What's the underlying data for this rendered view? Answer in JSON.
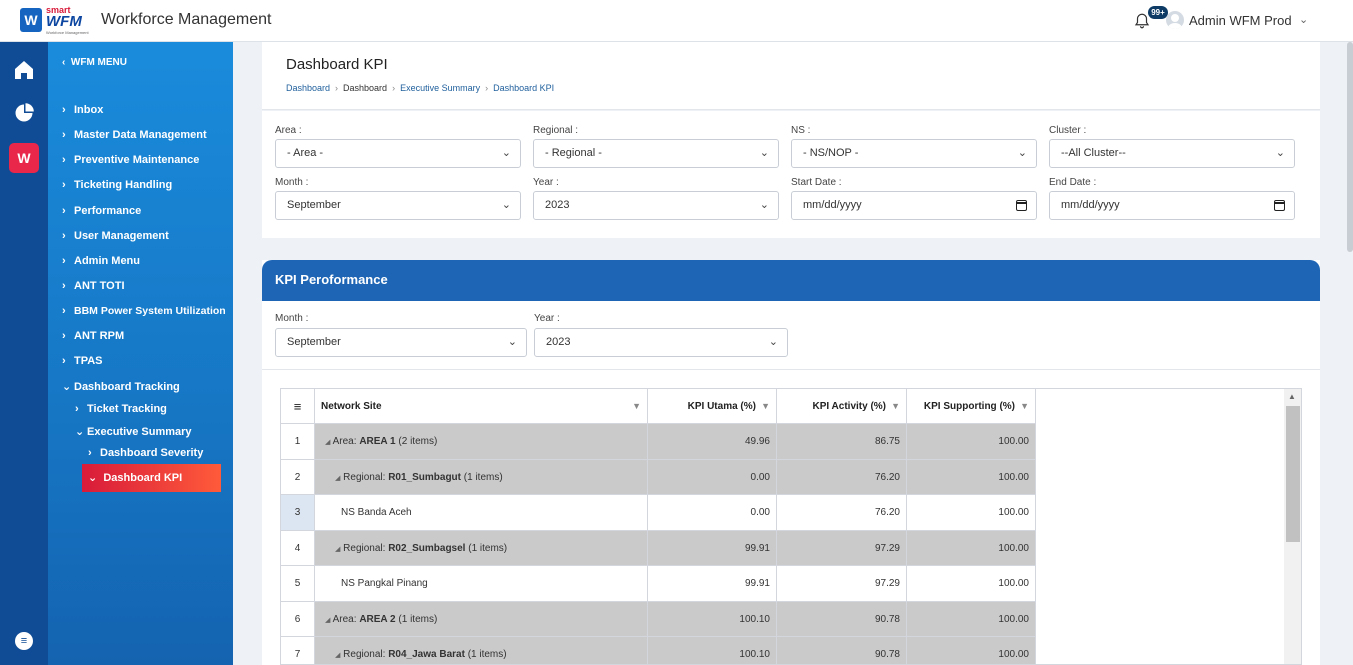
{
  "app": {
    "logo_small": "smart",
    "logo_main": "WFM",
    "logo_tagline": "Workforce Management",
    "title": "Workforce Management"
  },
  "topbar": {
    "notification_badge": "99+",
    "user_name": "Admin WFM Prod"
  },
  "menu": {
    "header": "WFM MENU",
    "items": [
      {
        "label": "Inbox"
      },
      {
        "label": "Master Data Management"
      },
      {
        "label": "Preventive Maintenance"
      },
      {
        "label": "Ticketing Handling"
      },
      {
        "label": "Performance"
      },
      {
        "label": "User Management"
      },
      {
        "label": "Admin Menu"
      },
      {
        "label": "ANT TOTI"
      },
      {
        "label": "BBM Power System Utilization"
      },
      {
        "label": "ANT RPM"
      },
      {
        "label": "TPAS"
      },
      {
        "label": "Dashboard Tracking"
      },
      {
        "label": "Ticket Tracking"
      },
      {
        "label": "Executive Summary"
      },
      {
        "label": "Dashboard Severity"
      },
      {
        "label": "Dashboard KPI"
      }
    ]
  },
  "page": {
    "title": "Dashboard KPI",
    "breadcrumb": [
      "Dashboard",
      "Dashboard",
      "Executive Summary",
      "Dashboard KPI"
    ]
  },
  "filters": {
    "area_label": "Area :",
    "area_value": "- Area -",
    "regional_label": "Regional :",
    "regional_value": "- Regional -",
    "ns_label": "NS :",
    "ns_value": "- NS/NOP -",
    "cluster_label": "Cluster :",
    "cluster_value": "--All Cluster--",
    "month_label": "Month :",
    "month_value": "September",
    "year_label": "Year :",
    "year_value": "2023",
    "start_label": "Start Date :",
    "start_value": "mm/dd/yyyy",
    "end_label": "End Date :",
    "end_value": "mm/dd/yyyy"
  },
  "kpi": {
    "title": "KPI Peroformance",
    "month_label": "Month :",
    "month_value": "September",
    "year_label": "Year :",
    "year_value": "2023",
    "columns": [
      "Network Site",
      "KPI Utama (%)",
      "KPI Activity (%)",
      "KPI Supporting (%)"
    ],
    "rows": [
      {
        "num": "1",
        "prefix": "Area: ",
        "name": "AREA 1",
        "suffix": " (2 items)",
        "utama": "49.96",
        "activity": "86.75",
        "supporting": "100.00"
      },
      {
        "num": "2",
        "prefix": "Regional: ",
        "name": "R01_Sumbagut",
        "suffix": " (1 items)",
        "utama": "0.00",
        "activity": "76.20",
        "supporting": "100.00"
      },
      {
        "num": "3",
        "prefix": "",
        "name": "NS Banda Aceh",
        "suffix": "",
        "utama": "0.00",
        "activity": "76.20",
        "supporting": "100.00"
      },
      {
        "num": "4",
        "prefix": "Regional: ",
        "name": "R02_Sumbagsel",
        "suffix": " (1 items)",
        "utama": "99.91",
        "activity": "97.29",
        "supporting": "100.00"
      },
      {
        "num": "5",
        "prefix": "",
        "name": "NS Pangkal Pinang",
        "suffix": "",
        "utama": "99.91",
        "activity": "97.29",
        "supporting": "100.00"
      },
      {
        "num": "6",
        "prefix": "Area: ",
        "name": "AREA 2",
        "suffix": " (1 items)",
        "utama": "100.10",
        "activity": "90.78",
        "supporting": "100.00"
      },
      {
        "num": "7",
        "prefix": "Regional: ",
        "name": "R04_Jawa Barat",
        "suffix": " (1 items)",
        "utama": "100.10",
        "activity": "90.78",
        "supporting": "100.00"
      }
    ]
  }
}
